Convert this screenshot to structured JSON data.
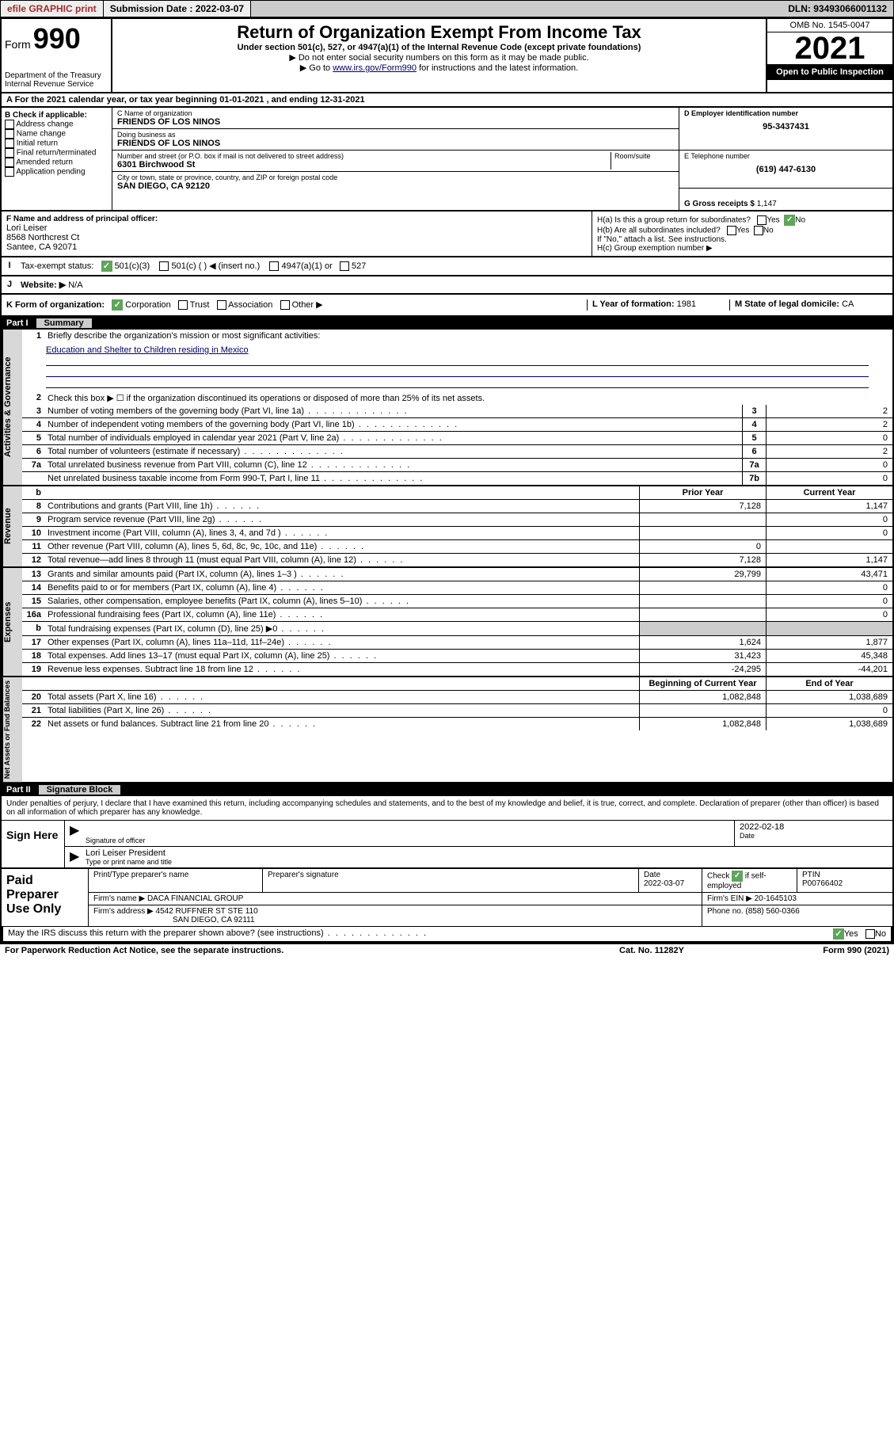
{
  "topbar": {
    "efile": "efile GRAPHIC print",
    "sub_label": "Submission Date : 2022-03-07",
    "dln": "DLN: 93493066001132"
  },
  "header": {
    "form_label": "Form",
    "form_num": "990",
    "dept": "Department of the Treasury",
    "irs": "Internal Revenue Service",
    "title": "Return of Organization Exempt From Income Tax",
    "sub1": "Under section 501(c), 527, or 4947(a)(1) of the Internal Revenue Code (except private foundations)",
    "sub2": "▶ Do not enter social security numbers on this form as it may be made public.",
    "sub3_pre": "▶ Go to ",
    "sub3_link": "www.irs.gov/Form990",
    "sub3_post": " for instructions and the latest information.",
    "omb": "OMB No. 1545-0047",
    "year": "2021",
    "open": "Open to Public Inspection"
  },
  "rowA": "A For the 2021 calendar year, or tax year beginning 01-01-2021   , and ending 12-31-2021",
  "colB": {
    "hdr": "B Check if applicable:",
    "items": [
      "Address change",
      "Name change",
      "Initial return",
      "Final return/terminated",
      "Amended return",
      "Application pending"
    ]
  },
  "colC": {
    "name_lbl": "C Name of organization",
    "name": "FRIENDS OF LOS NINOS",
    "dba_lbl": "Doing business as",
    "dba": "FRIENDS OF LOS NINOS",
    "addr_lbl": "Number and street (or P.O. box if mail is not delivered to street address)",
    "addr": "6301 Birchwood St",
    "room_lbl": "Room/suite",
    "city_lbl": "City or town, state or province, country, and ZIP or foreign postal code",
    "city": "SAN DIEGO, CA  92120"
  },
  "colD": {
    "ein_lbl": "D Employer identification number",
    "ein": "95-3437431",
    "tel_lbl": "E Telephone number",
    "tel": "(619) 447-6130",
    "gross_lbl": "G Gross receipts $",
    "gross": "1,147"
  },
  "colF": {
    "lbl": "F Name and address of principal officer:",
    "name": "Lori Leiser",
    "addr1": "8568 Northcrest Ct",
    "addr2": "Santee, CA  92071"
  },
  "colH": {
    "ha": "H(a)  Is this a group return for subordinates?",
    "hb": "H(b)  Are all subordinates included?",
    "hb2": "If \"No,\" attach a list. See instructions.",
    "hc": "H(c)  Group exemption number ▶",
    "yes": "Yes",
    "no": "No"
  },
  "rowI": {
    "lbl": "Tax-exempt status:",
    "opts": [
      "501(c)(3)",
      "501(c) (   ) ◀ (insert no.)",
      "4947(a)(1) or",
      "527"
    ]
  },
  "rowJ": {
    "lbl": "Website: ▶",
    "val": "N/A"
  },
  "rowK": {
    "k_lbl": "K Form of organization:",
    "k_opts": [
      "Corporation",
      "Trust",
      "Association",
      "Other ▶"
    ],
    "l_lbl": "L Year of formation:",
    "l_val": "1981",
    "m_lbl": "M State of legal domicile:",
    "m_val": "CA"
  },
  "part1": {
    "hdr_part": "Part I",
    "hdr_title": "Summary",
    "q1": "Briefly describe the organization's mission or most significant activities:",
    "mission": "Education and Shelter to Children residing in Mexico",
    "q2": "Check this box ▶ ☐  if the organization discontinued its operations or disposed of more than 25% of its net assets.",
    "lines_gov": [
      {
        "n": "3",
        "t": "Number of voting members of the governing body (Part VI, line 1a)",
        "nb": "3",
        "v": "2"
      },
      {
        "n": "4",
        "t": "Number of independent voting members of the governing body (Part VI, line 1b)",
        "nb": "4",
        "v": "2"
      },
      {
        "n": "5",
        "t": "Total number of individuals employed in calendar year 2021 (Part V, line 2a)",
        "nb": "5",
        "v": "0"
      },
      {
        "n": "6",
        "t": "Total number of volunteers (estimate if necessary)",
        "nb": "6",
        "v": "2"
      },
      {
        "n": "7a",
        "t": "Total unrelated business revenue from Part VIII, column (C), line 12",
        "nb": "7a",
        "v": "0"
      },
      {
        "n": "",
        "t": "Net unrelated business taxable income from Form 990-T, Part I, line 11",
        "nb": "7b",
        "v": "0"
      }
    ],
    "col_py": "Prior Year",
    "col_cy": "Current Year",
    "lines_rev": [
      {
        "n": "8",
        "t": "Contributions and grants (Part VIII, line 1h)",
        "py": "7,128",
        "cy": "1,147"
      },
      {
        "n": "9",
        "t": "Program service revenue (Part VIII, line 2g)",
        "py": "",
        "cy": "0"
      },
      {
        "n": "10",
        "t": "Investment income (Part VIII, column (A), lines 3, 4, and 7d )",
        "py": "",
        "cy": "0"
      },
      {
        "n": "11",
        "t": "Other revenue (Part VIII, column (A), lines 5, 6d, 8c, 9c, 10c, and 11e)",
        "py": "0",
        "cy": ""
      },
      {
        "n": "12",
        "t": "Total revenue—add lines 8 through 11 (must equal Part VIII, column (A), line 12)",
        "py": "7,128",
        "cy": "1,147"
      }
    ],
    "lines_exp": [
      {
        "n": "13",
        "t": "Grants and similar amounts paid (Part IX, column (A), lines 1–3 )",
        "py": "29,799",
        "cy": "43,471"
      },
      {
        "n": "14",
        "t": "Benefits paid to or for members (Part IX, column (A), line 4)",
        "py": "",
        "cy": "0"
      },
      {
        "n": "15",
        "t": "Salaries, other compensation, employee benefits (Part IX, column (A), lines 5–10)",
        "py": "",
        "cy": "0"
      },
      {
        "n": "16a",
        "t": "Professional fundraising fees (Part IX, column (A), line 11e)",
        "py": "",
        "cy": "0"
      },
      {
        "n": "b",
        "t": "Total fundraising expenses (Part IX, column (D), line 25) ▶0",
        "py": "shade",
        "cy": "shade"
      },
      {
        "n": "17",
        "t": "Other expenses (Part IX, column (A), lines 11a–11d, 11f–24e)",
        "py": "1,624",
        "cy": "1,877"
      },
      {
        "n": "18",
        "t": "Total expenses. Add lines 13–17 (must equal Part IX, column (A), line 25)",
        "py": "31,423",
        "cy": "45,348"
      },
      {
        "n": "19",
        "t": "Revenue less expenses. Subtract line 18 from line 12",
        "py": "-24,295",
        "cy": "-44,201"
      }
    ],
    "col_bcy": "Beginning of Current Year",
    "col_eoy": "End of Year",
    "lines_net": [
      {
        "n": "20",
        "t": "Total assets (Part X, line 16)",
        "py": "1,082,848",
        "cy": "1,038,689"
      },
      {
        "n": "21",
        "t": "Total liabilities (Part X, line 26)",
        "py": "",
        "cy": "0"
      },
      {
        "n": "22",
        "t": "Net assets or fund balances. Subtract line 21 from line 20",
        "py": "1,082,848",
        "cy": "1,038,689"
      }
    ],
    "vlabels": {
      "gov": "Activities & Governance",
      "rev": "Revenue",
      "exp": "Expenses",
      "net": "Net Assets or Fund Balances"
    }
  },
  "part2": {
    "hdr_part": "Part II",
    "hdr_title": "Signature Block",
    "decl": "Under penalties of perjury, I declare that I have examined this return, including accompanying schedules and statements, and to the best of my knowledge and belief, it is true, correct, and complete. Declaration of preparer (other than officer) is based on all information of which preparer has any knowledge.",
    "sign_here": "Sign Here",
    "sig_officer": "Signature of officer",
    "date_lbl": "Date",
    "date_val": "2022-02-18",
    "name_title": "Lori Leiser  President",
    "name_title_lbl": "Type or print name and title",
    "paid": "Paid Preparer Use Only",
    "prep_name_lbl": "Print/Type preparer's name",
    "prep_sig_lbl": "Preparer's signature",
    "prep_date_lbl": "Date",
    "prep_date": "2022-03-07",
    "prep_check": "Check ☑ if self-employed",
    "ptin_lbl": "PTIN",
    "ptin": "P00766402",
    "firm_name_lbl": "Firm's name    ▶",
    "firm_name": "DACA FINANCIAL GROUP",
    "firm_ein_lbl": "Firm's EIN ▶",
    "firm_ein": "20-1645103",
    "firm_addr_lbl": "Firm's address ▶",
    "firm_addr1": "4542 RUFFNER ST STE 110",
    "firm_addr2": "SAN DIEGO, CA  92111",
    "phone_lbl": "Phone no.",
    "phone": "(858) 560-0366",
    "may_irs": "May the IRS discuss this return with the preparer shown above? (see instructions)",
    "yes": "Yes",
    "no": "No"
  },
  "footer": {
    "l": "For Paperwork Reduction Act Notice, see the separate instructions.",
    "m": "Cat. No. 11282Y",
    "r": "Form 990 (2021)"
  }
}
